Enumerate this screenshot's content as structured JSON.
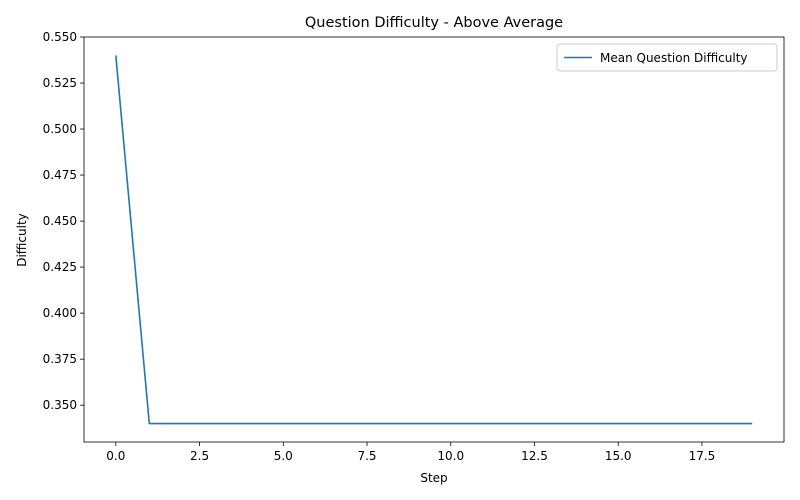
{
  "chart_data": {
    "type": "line",
    "title": "Question Difficulty - Above Average",
    "xlabel": "Step",
    "ylabel": "Difficulty",
    "xlim": [
      -0.95,
      19.95
    ],
    "ylim": [
      0.33,
      0.55
    ],
    "xticks": [
      0,
      2.5,
      5,
      7.5,
      10,
      12.5,
      15,
      17.5
    ],
    "xtick_labels": [
      "0.0",
      "2.5",
      "5.0",
      "7.5",
      "10.0",
      "12.5",
      "15.0",
      "17.5"
    ],
    "yticks": [
      0.35,
      0.375,
      0.4,
      0.425,
      0.45,
      0.475,
      0.5,
      0.525,
      0.55
    ],
    "ytick_labels": [
      "0.350",
      "0.375",
      "0.400",
      "0.425",
      "0.450",
      "0.475",
      "0.500",
      "0.525",
      "0.550"
    ],
    "grid": false,
    "legend_position": "top-right",
    "series": [
      {
        "name": "Mean Question Difficulty",
        "color": "#1f77b4",
        "x": [
          0,
          1,
          2,
          3,
          4,
          5,
          6,
          7,
          8,
          9,
          10,
          11,
          12,
          13,
          14,
          15,
          16,
          17,
          18,
          19
        ],
        "y": [
          0.54,
          0.34,
          0.34,
          0.34,
          0.34,
          0.34,
          0.34,
          0.34,
          0.34,
          0.34,
          0.34,
          0.34,
          0.34,
          0.34,
          0.34,
          0.34,
          0.34,
          0.34,
          0.34,
          0.34
        ]
      }
    ]
  }
}
